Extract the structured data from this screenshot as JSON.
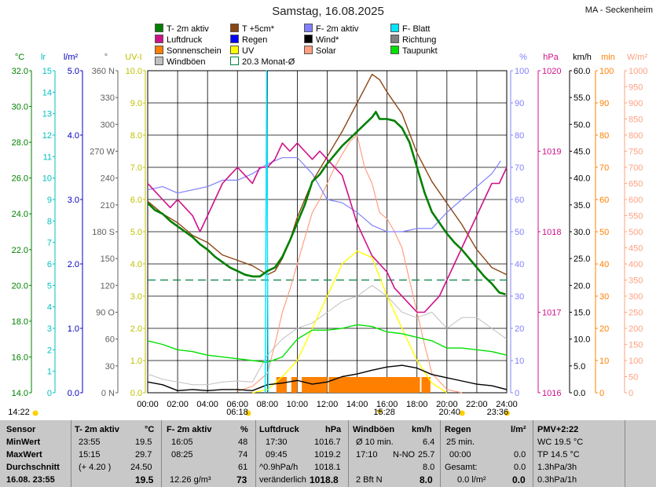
{
  "title": "Samstag, 16.08.2025",
  "station": "MA - Seckenheim",
  "legend": [
    {
      "label": "T- 2m aktiv",
      "color": "#008000"
    },
    {
      "label": "T +5cm*",
      "color": "#8b4513"
    },
    {
      "label": "F- 2m aktiv",
      "color": "#8080ff"
    },
    {
      "label": "F- Blatt",
      "color": "#00e5ff"
    },
    {
      "label": "Luftdruck",
      "color": "#d0108a"
    },
    {
      "label": "Regen",
      "color": "#0000ff"
    },
    {
      "label": "Wind*",
      "color": "#000000"
    },
    {
      "label": "Richtung",
      "color": "#808080"
    },
    {
      "label": "Sonnenschein",
      "color": "#ff8000"
    },
    {
      "label": "UV",
      "color": "#ffff00"
    },
    {
      "label": "Solar",
      "color": "#ffa080"
    },
    {
      "label": "Taupunkt",
      "color": "#00e000"
    },
    {
      "label": "Windböen",
      "color": "#c0c0c0"
    },
    {
      "label": "20.3 Monat-Ø",
      "color": "#008040"
    }
  ],
  "chart_data": {
    "type": "line",
    "x_labels": [
      "00:00",
      "02:00",
      "04:00",
      "06:00",
      "08:00",
      "10:00",
      "12:00",
      "14:00",
      "16:00",
      "18:00",
      "20:00",
      "22:00",
      "24:00"
    ],
    "axes_left": [
      {
        "unit": "°C",
        "color": "#008000",
        "ticks": [
          "32.0",
          "30.0",
          "28.0",
          "26.0",
          "24.0",
          "22.0",
          "20.0",
          "18.0",
          "16.0",
          "14.0"
        ]
      },
      {
        "unit": "lr",
        "color": "#00c0c0",
        "ticks": [
          "15",
          "14",
          "13",
          "12",
          "11",
          "10",
          "9",
          "8",
          "7",
          "6",
          "5",
          "4",
          "3",
          "2",
          "1",
          "0"
        ]
      },
      {
        "unit": "l/m²",
        "color": "#0000c0",
        "ticks": [
          "5.0",
          "4.0",
          "3.0",
          "2.0",
          "1.0",
          "0.0"
        ]
      },
      {
        "unit": "°",
        "color": "#606060",
        "ticks": [
          "360 N",
          "330",
          "300",
          "270 W",
          "240",
          "210",
          "180 S",
          "150",
          "120",
          "90 O",
          "60",
          "30",
          "0 N"
        ]
      },
      {
        "unit": "UV-I",
        "color": "#c0c000",
        "ticks": [
          "10.0",
          "9.0",
          "8.0",
          "7.0",
          "6.0",
          "5.0",
          "4.0",
          "3.0",
          "2.0",
          "1.0",
          "0.0"
        ]
      }
    ],
    "axes_right": [
      {
        "unit": "%",
        "color": "#8080ff",
        "ticks": [
          "100",
          "90",
          "80",
          "70",
          "60",
          "50",
          "40",
          "30",
          "20",
          "10",
          "0"
        ]
      },
      {
        "unit": "hPa",
        "color": "#d0108a",
        "ticks": [
          "1020",
          "1019",
          "1018",
          "1017",
          "1016"
        ]
      },
      {
        "unit": "km/h",
        "color": "#000000",
        "ticks": [
          "60.0",
          "55.0",
          "50.0",
          "45.0",
          "40.0",
          "35.0",
          "30.0",
          "25.0",
          "20.0",
          "15.0",
          "10.0",
          "5.0",
          "0.0"
        ]
      },
      {
        "unit": "min",
        "color": "#ff8000",
        "ticks": [
          "100",
          "90",
          "80",
          "70",
          "60",
          "50",
          "40",
          "30",
          "20",
          "10",
          "0"
        ]
      },
      {
        "unit": "W/m²",
        "color": "#ffa080",
        "ticks": [
          "1000",
          "950",
          "900",
          "850",
          "800",
          "750",
          "700",
          "650",
          "600",
          "550",
          "500",
          "450",
          "400",
          "350",
          "300",
          "250",
          "200",
          "150",
          "100",
          "50",
          "0"
        ]
      }
    ],
    "series": [
      {
        "name": "T- 2m aktiv",
        "color": "#008000",
        "x": [
          0,
          0.5,
          1,
          1.5,
          2,
          2.5,
          3,
          3.5,
          4,
          4.5,
          5,
          5.5,
          6,
          6.5,
          7,
          7.5,
          8,
          8.5,
          9,
          9.5,
          10,
          10.5,
          11,
          11.5,
          12,
          12.5,
          13,
          13.5,
          14,
          14.5,
          15,
          15.25,
          15.5,
          16,
          16.5,
          17,
          17.5,
          18,
          18.5,
          19,
          19.5,
          20,
          20.5,
          21,
          21.5,
          22,
          22.5,
          23,
          23.5,
          23.92
        ],
        "y": [
          24.6,
          24.2,
          24.0,
          23.6,
          23.3,
          23.0,
          22.7,
          22.3,
          22.0,
          21.6,
          21.3,
          21.0,
          20.8,
          20.6,
          20.5,
          20.5,
          20.8,
          21.0,
          21.6,
          22.5,
          23.5,
          24.5,
          25.8,
          26.2,
          26.8,
          27.3,
          27.8,
          28.2,
          28.6,
          29.0,
          29.4,
          29.7,
          29.3,
          29.3,
          29.2,
          28.8,
          28.0,
          26.6,
          25.2,
          24.1,
          23.5,
          22.9,
          22.4,
          22.0,
          21.5,
          21.0,
          20.5,
          20.1,
          19.6,
          19.5
        ]
      },
      {
        "name": "T +5cm*",
        "color": "#8b4513",
        "x": [
          0,
          1,
          2,
          3,
          4,
          5,
          6,
          7,
          8,
          8.5,
          9,
          9.5,
          10,
          11,
          12,
          13,
          14,
          14.5,
          15,
          15.5,
          16,
          17,
          18,
          19,
          20,
          21,
          22,
          23,
          24
        ],
        "y": [
          24.7,
          24.0,
          23.5,
          22.8,
          22.4,
          21.7,
          21.4,
          21.1,
          20.6,
          20.8,
          21.5,
          22.5,
          23.8,
          25.8,
          27.2,
          28.6,
          30.2,
          31.0,
          31.8,
          31.5,
          30.8,
          29.6,
          27.4,
          25.8,
          24.6,
          23.4,
          22.0,
          21.0,
          20.6
        ]
      },
      {
        "name": "F- 2m aktiv",
        "color": "#8080ff",
        "x": [
          0,
          1,
          2,
          3,
          4,
          5,
          6,
          7,
          8,
          9,
          10,
          11,
          12,
          13,
          14,
          15,
          16,
          17,
          18,
          19,
          20,
          21,
          22,
          23,
          23.6
        ],
        "y": [
          63,
          64,
          62,
          63,
          64,
          66,
          66,
          68,
          71,
          73,
          73,
          68,
          60,
          59,
          56,
          52,
          50,
          50,
          51,
          51,
          56,
          60,
          64,
          68,
          72
        ]
      },
      {
        "name": "Luftdruck",
        "color": "#d0108a",
        "x": [
          0,
          0.5,
          1,
          1.5,
          2,
          2.5,
          3,
          3.5,
          4,
          4.5,
          5,
          5.5,
          6,
          6.5,
          7,
          7.5,
          8,
          8.5,
          9,
          9.5,
          10,
          10.5,
          11,
          11.5,
          12,
          12.5,
          13,
          13.5,
          14,
          14.5,
          15,
          15.5,
          16,
          16.5,
          17,
          17.5,
          18,
          18.5,
          19,
          19.5,
          20,
          20.5,
          21,
          21.5,
          22,
          22.5,
          23,
          23.5,
          24
        ],
        "y": [
          1018.6,
          1018.5,
          1018.4,
          1018.3,
          1018.4,
          1018.3,
          1018.2,
          1018.0,
          1018.2,
          1018.4,
          1018.6,
          1018.7,
          1018.8,
          1018.7,
          1018.6,
          1018.8,
          1018.8,
          1018.9,
          1019.1,
          1019.0,
          1019.1,
          1019.0,
          1018.9,
          1019.0,
          1018.9,
          1018.8,
          1018.7,
          1018.4,
          1018.1,
          1017.9,
          1017.7,
          1017.6,
          1017.5,
          1017.3,
          1017.2,
          1017.1,
          1017.0,
          1017.0,
          1017.1,
          1017.2,
          1017.4,
          1017.6,
          1017.8,
          1018.0,
          1018.2,
          1018.4,
          1018.6,
          1018.6,
          1018.8
        ]
      },
      {
        "name": "Taupunkt",
        "color": "#00e000",
        "x": [
          0,
          1,
          2,
          3,
          4,
          5,
          6,
          7,
          8,
          9,
          10,
          11,
          12,
          13,
          14,
          15,
          16,
          17,
          18,
          19,
          20,
          21,
          22,
          23,
          24
        ],
        "y": [
          16.9,
          16.7,
          16.4,
          16.3,
          16.1,
          16.0,
          15.9,
          15.8,
          15.7,
          16.0,
          17.0,
          17.5,
          17.5,
          17.6,
          17.8,
          17.7,
          17.4,
          17.3,
          17.1,
          16.9,
          16.5,
          16.5,
          16.4,
          16.3,
          16.1
        ]
      },
      {
        "name": "Wind*",
        "color": "#000000",
        "x": [
          0,
          1,
          2,
          3,
          4,
          5,
          6,
          7,
          8,
          9,
          10,
          11,
          12,
          13,
          14,
          15,
          16,
          17,
          18,
          19,
          20,
          21,
          22,
          23,
          24
        ],
        "y": [
          2.0,
          1.5,
          0.4,
          0.6,
          0.4,
          0.6,
          0.6,
          0.4,
          1.5,
          1.8,
          2.3,
          1.6,
          2.0,
          3.0,
          3.5,
          4.2,
          4.8,
          5.1,
          4.6,
          3.4,
          2.8,
          2.2,
          1.6,
          1.3,
          0.6
        ]
      },
      {
        "name": "Windböen",
        "color": "#c0c0c0",
        "x": [
          0,
          1,
          2,
          3,
          4,
          5,
          6,
          7,
          8,
          9,
          10,
          11,
          12,
          13,
          14,
          15,
          16,
          17,
          18,
          19,
          20,
          21,
          22,
          23,
          24
        ],
        "y": [
          3.5,
          2.5,
          2.0,
          1.5,
          1.5,
          2.0,
          2.2,
          2.0,
          7.0,
          10.0,
          12.0,
          13.0,
          15.0,
          17.0,
          18.0,
          20.0,
          18.0,
          15.0,
          14.0,
          15.0,
          12.0,
          14.0,
          14.0,
          12.0,
          10.0
        ]
      },
      {
        "name": "Solar",
        "color": "#ffa080",
        "x": [
          6,
          7,
          8,
          8.5,
          9,
          9.5,
          10,
          10.5,
          11,
          11.5,
          12,
          12.5,
          13,
          13.5,
          14,
          14.5,
          15,
          15.5,
          16,
          16.5,
          17,
          17.5,
          18,
          18.5,
          19,
          20,
          21
        ],
        "y": [
          5,
          20,
          60,
          150,
          250,
          320,
          400,
          480,
          560,
          600,
          650,
          700,
          740,
          780,
          800,
          700,
          650,
          560,
          540,
          500,
          450,
          350,
          250,
          150,
          60,
          10,
          0
        ]
      },
      {
        "name": "UV",
        "color": "#ffff00",
        "x": [
          7,
          8,
          9,
          10,
          11,
          12,
          13,
          14,
          15,
          16,
          17,
          18,
          19,
          20
        ],
        "y": [
          0.0,
          0.1,
          0.5,
          1.0,
          2.0,
          3.0,
          4.0,
          4.4,
          4.2,
          3.0,
          2.0,
          1.0,
          0.3,
          0.0
        ]
      },
      {
        "name": "F- Blatt",
        "color": "#00e5ff",
        "x": [
          7.85,
          7.95,
          8.05
        ],
        "y": [
          0,
          100,
          0
        ]
      }
    ],
    "sunshine_blocks": [
      [
        8.6,
        9.3
      ],
      [
        9.6,
        10.0
      ],
      [
        10.3,
        12.0
      ],
      [
        12.1,
        18.2
      ],
      [
        18.3,
        18.9
      ]
    ],
    "rain_markers_hours": [
      15.5
    ],
    "month_average_temp": 20.3,
    "ylim_temp": [
      14.0,
      32.0
    ],
    "grid": true
  },
  "time_markers": {
    "left": "14:22",
    "sunrise": "06:18",
    "t1": "15:28",
    "sunset": "20:40",
    "t2": "23:36"
  },
  "stats": {
    "sensor": {
      "head": "Sensor",
      "min": "MinWert",
      "max": "MaxWert",
      "avg": "Durchschnitt",
      "date": "16.08. 23:55"
    },
    "temp": {
      "head": "T- 2m aktiv",
      "unit": "°C",
      "min_t": "23:55",
      "min_v": "19.5",
      "max_t": "15:15",
      "max_v": "29.7",
      "avg_t": "(+ 4.20 )",
      "avg_v": "24.50",
      "cur": "19.5"
    },
    "hum": {
      "head": "F- 2m aktiv",
      "unit": "%",
      "min_t": "16:05",
      "min_v": "48",
      "max_t": "08:25",
      "max_v": "74",
      "avg_v": "61",
      "cur_t": "12.26 g/m³",
      "cur": "73"
    },
    "press": {
      "head": "Luftdruck",
      "unit": "hPa",
      "min_t": "17:30",
      "min_v": "1016.7",
      "max_t": "09:45",
      "max_v": "1019.2",
      "avg_t": "^0.9hPa/h",
      "avg_v": "1018.1",
      "cur_t": "veränderlich",
      "cur": "1018.8"
    },
    "wind": {
      "head": "Windböen",
      "unit": "km/h",
      "min_t": "Ø 10 min.",
      "min_v": "6.4",
      "max_t": "17:10",
      "max_d": "N-NO",
      "max_v": "25.7",
      "avg_v": "8.0",
      "cur_t": "2 Bft N",
      "cur": "8.0"
    },
    "rain": {
      "head": "Regen",
      "unit": "l/m²",
      "min_t": "25 min.",
      "max_t": "00:00",
      "max_v": "0.0",
      "avg_t": "Gesamt:",
      "avg_v": "0.0",
      "cur_t": "0.0 l/m²",
      "cur": "0.0"
    },
    "pmv": {
      "head": "PMV+2:22",
      "l1": "WC 19.5 °C",
      "l2": "TP 14.5 °C",
      "l3": "1.3hPa/3h",
      "l4": "0.3hPa/1h"
    }
  }
}
